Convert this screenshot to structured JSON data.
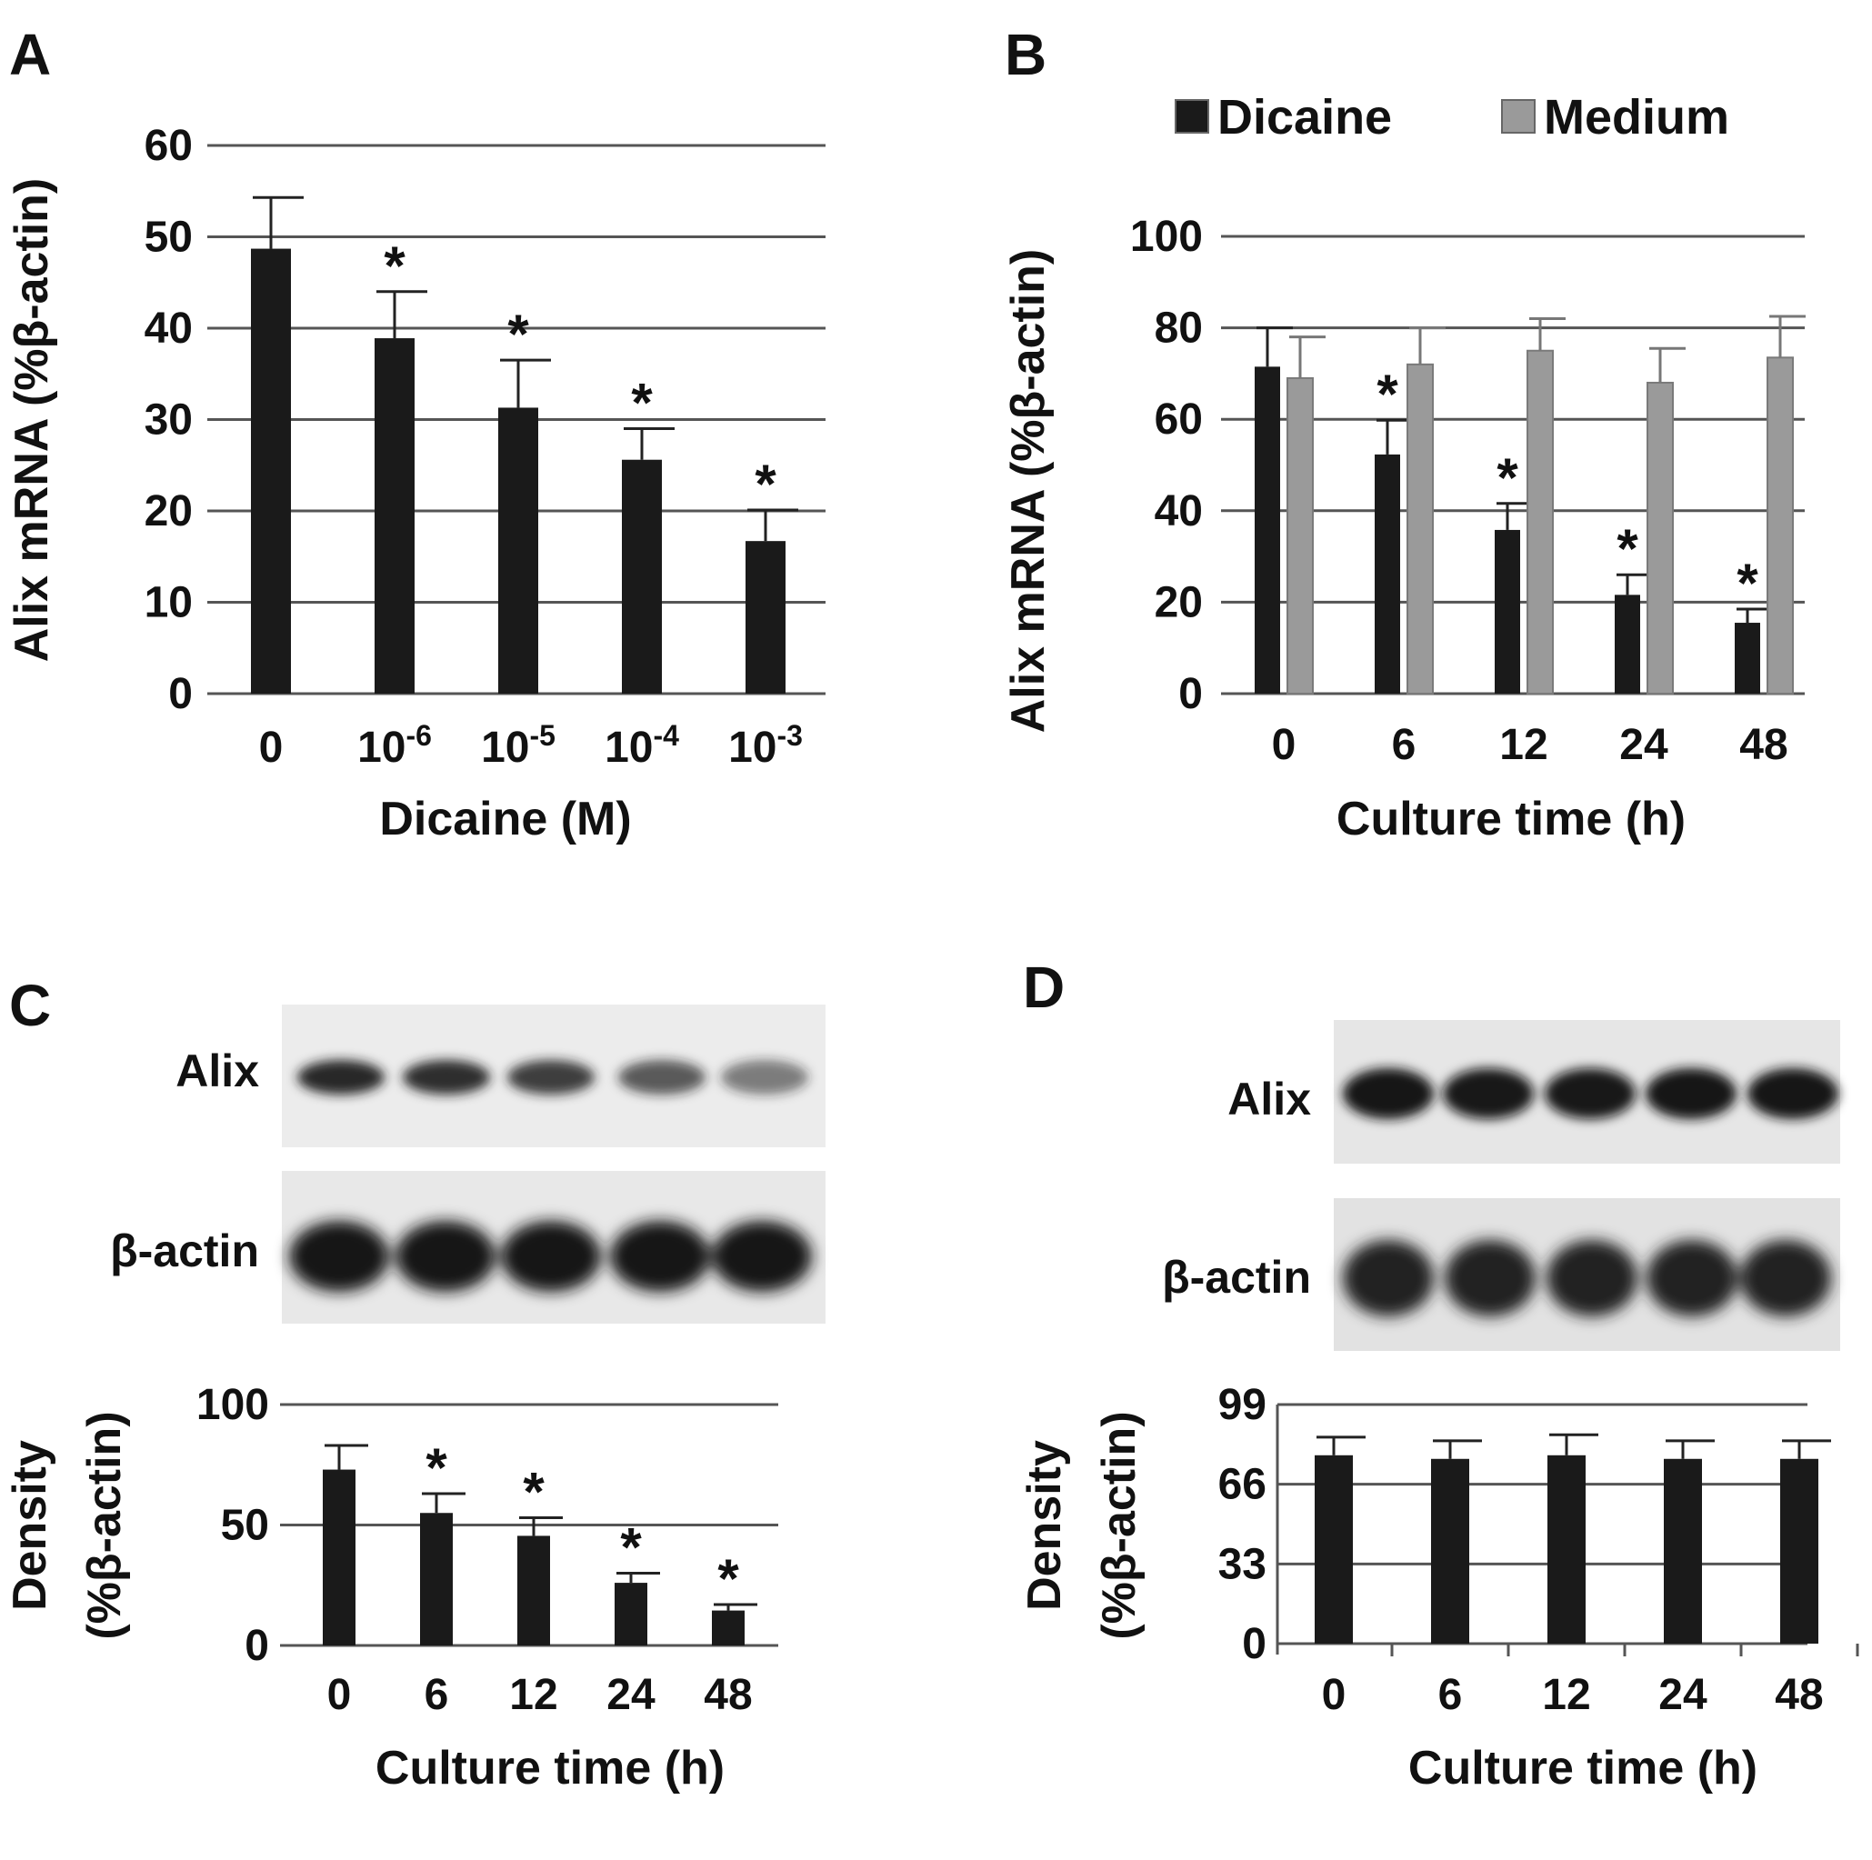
{
  "panels": {
    "a": {
      "letter": "A"
    },
    "b": {
      "letter": "B"
    },
    "c": {
      "letter": "C",
      "blot_labels": [
        "Alix",
        "β-actin"
      ]
    },
    "d": {
      "letter": "D",
      "blot_labels": [
        "Alix",
        "β-actin"
      ]
    }
  },
  "colors": {
    "dicaine": "#1a1a1a",
    "medium": "#9a9a9a",
    "grid": "#555555",
    "axis": "#555555"
  },
  "chart_data": [
    {
      "id": "a",
      "type": "bar",
      "xlabel": "Dicaine (M)",
      "ylabel": "Alix mRNA (%β-actin)",
      "categories": [
        {
          "base": "0",
          "exp": ""
        },
        {
          "base": "10",
          "exp": "-6"
        },
        {
          "base": "10",
          "exp": "-5"
        },
        {
          "base": "10",
          "exp": "-4"
        },
        {
          "base": "10",
          "exp": "-3"
        }
      ],
      "series": [
        {
          "values": [
            48.7,
            38.9,
            31.3,
            25.6,
            16.7
          ],
          "errors": [
            5.6,
            5.1,
            5.2,
            3.4,
            3.4
          ],
          "significant": [
            false,
            true,
            true,
            true,
            true
          ]
        }
      ],
      "significance_mark": "*",
      "ylim": [
        0,
        60
      ],
      "yticks": [
        "0",
        "10",
        "20",
        "30",
        "40",
        "50",
        "60"
      ],
      "grid": true
    },
    {
      "id": "b",
      "type": "bar",
      "xlabel": "Culture time (h)",
      "ylabel": "Alix mRNA (%β-actin)",
      "categories": [
        "0",
        "6",
        "12",
        "24",
        "48"
      ],
      "series": [
        {
          "name": "Dicaine",
          "values": [
            71.5,
            52.3,
            35.8,
            21.6,
            15.5
          ],
          "errors": [
            8.5,
            7.5,
            5.8,
            4.4,
            3.0
          ],
          "significant": [
            false,
            true,
            true,
            true,
            true
          ]
        },
        {
          "name": "Medium",
          "values": [
            69.0,
            72.0,
            75.0,
            68.0,
            73.5
          ],
          "errors": [
            9.0,
            8.0,
            7.0,
            7.5,
            9.0
          ],
          "significant": [
            false,
            false,
            false,
            false,
            false
          ]
        }
      ],
      "significance_mark": "*",
      "ylim": [
        0,
        100
      ],
      "yticks": [
        "0",
        "20",
        "40",
        "60",
        "80",
        "100"
      ],
      "legend": "top",
      "grid": true
    },
    {
      "id": "c",
      "type": "bar",
      "xlabel": "Culture time (h)",
      "ylabel": [
        "Density",
        "(%β-actin)"
      ],
      "categories": [
        "0",
        "6",
        "12",
        "24",
        "48"
      ],
      "series": [
        {
          "values": [
            73,
            55,
            45.5,
            26,
            14.5
          ],
          "errors": [
            10,
            8,
            7.5,
            4,
            2.5
          ],
          "significant": [
            false,
            true,
            true,
            true,
            true
          ]
        }
      ],
      "significance_mark": "*",
      "ylim": [
        0,
        100
      ],
      "yticks": [
        "0",
        "50",
        "100"
      ],
      "grid": true
    },
    {
      "id": "d",
      "type": "bar",
      "xlabel": "Culture time (h)",
      "ylabel": [
        "Density",
        "(%β-actin)"
      ],
      "categories": [
        "0",
        "6",
        "12",
        "24",
        "48"
      ],
      "series": [
        {
          "values": [
            78,
            76.5,
            78,
            76.5,
            76.5
          ],
          "errors": [
            7.5,
            7.5,
            8.5,
            7.5,
            7.5
          ],
          "significant": [
            false,
            false,
            false,
            false,
            false
          ]
        }
      ],
      "ylim": [
        0,
        99
      ],
      "yticks": [
        "0",
        "33",
        "66",
        "99"
      ],
      "grid": true
    }
  ]
}
